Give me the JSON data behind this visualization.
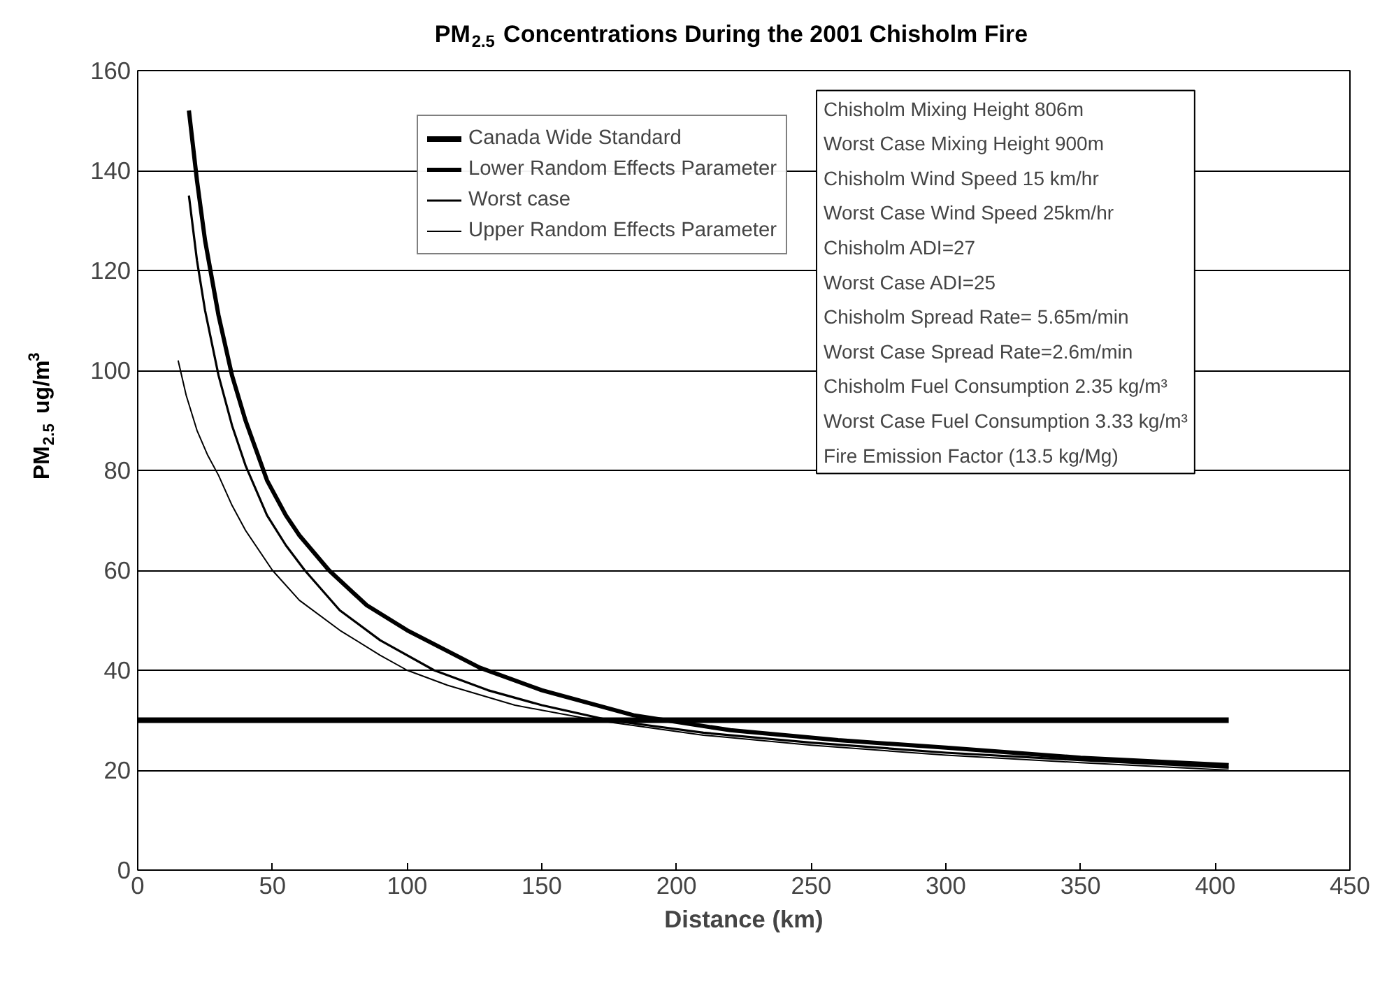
{
  "chart_data": {
    "type": "line",
    "title": "PM$_{2.5}$ Concentrations During the 2001 Chisholm Fire",
    "xlabel": "Distance (km)",
    "ylabel": "PM$_{2.5}$ ug/m$^{3}$",
    "xlim": [
      0,
      450
    ],
    "ylim": [
      0,
      160
    ],
    "xticks": [
      0,
      50,
      100,
      150,
      200,
      250,
      300,
      350,
      400,
      450
    ],
    "yticks": [
      0,
      20,
      40,
      60,
      80,
      100,
      120,
      140,
      160
    ],
    "grid": "y",
    "legend": "top",
    "marker": "none",
    "line_style": "solid",
    "series": [
      {
        "name": "Canada Wide Standard",
        "color": "#000000",
        "x": [
          0,
          405
        ],
        "values": [
          30,
          30
        ]
      },
      {
        "name": "Lower Random Effects Parameter",
        "color": "#000000",
        "x": [
          19,
          22,
          25,
          30,
          35,
          40,
          48,
          55,
          60,
          71,
          85,
          100,
          127,
          150,
          184,
          220,
          260,
          300,
          350,
          405
        ],
        "values": [
          152,
          138,
          126,
          111,
          99,
          90,
          78,
          71,
          67,
          60,
          53,
          48,
          40.5,
          36,
          31,
          28,
          26,
          24.5,
          22.5,
          21
        ]
      },
      {
        "name": "Worst case",
        "color": "#000000",
        "x": [
          19,
          22,
          25,
          30,
          35,
          40,
          48,
          55,
          62,
          75,
          90,
          110,
          130,
          150,
          175,
          210,
          250,
          300,
          350,
          405
        ],
        "values": [
          135,
          122,
          112,
          99,
          89,
          81,
          71,
          65,
          60,
          52,
          46,
          40,
          36,
          33,
          30,
          27.5,
          25.5,
          23.5,
          22,
          20.5
        ]
      },
      {
        "name": "Upper Random Effects Parameter",
        "color": "#000000",
        "x": [
          15,
          18,
          22,
          26,
          30,
          35,
          40,
          50,
          60,
          75,
          90,
          100,
          115,
          140,
          170,
          210,
          250,
          300,
          350,
          405
        ],
        "values": [
          102,
          95,
          88,
          83,
          79,
          73,
          68,
          60,
          54,
          48,
          43,
          40,
          37,
          33,
          30,
          27,
          25,
          23,
          21.5,
          20
        ]
      }
    ],
    "annotations": [
      "Chisholm Mixing Height 806m",
      "Worst Case Mixing Height 900m",
      "Chisholm Wind Speed 15 km/hr",
      "Worst Case Wind Speed 25km/hr",
      "Chisholm ADI=27",
      "Worst Case ADI=25",
      "Chisholm Spread Rate= 5.65m/min",
      "Worst Case Spread Rate=2.6m/min",
      "Chisholm Fuel Consumption 2.35 kg/m³",
      "Worst Case Fuel Consumption 3.33 kg/m³",
      "Fire Emission Factor (13.5 kg/Mg)"
    ]
  }
}
